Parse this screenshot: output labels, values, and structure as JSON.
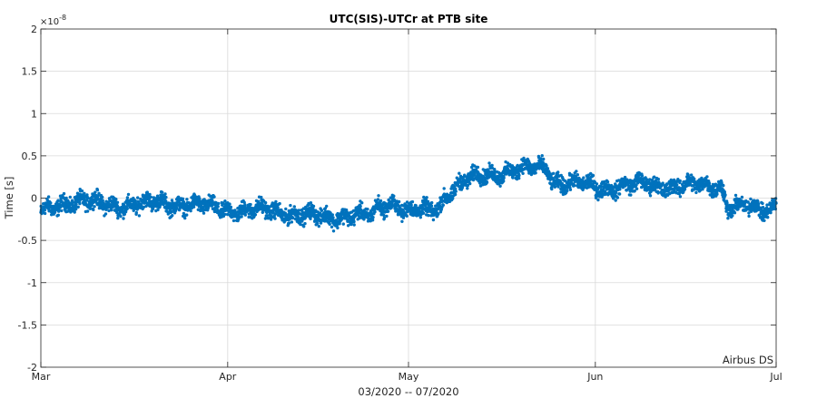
{
  "chart_data": {
    "type": "scatter",
    "title": "UTC(SIS)-UTCr at PTB site",
    "xlabel": "03/2020 -- 07/2020",
    "ylabel": "Time [s]",
    "y_exponent_label": "×10",
    "y_exponent_power": "-8",
    "annotation": "Airbus DS",
    "x_range": [
      "2020-03-01",
      "2020-07-01"
    ],
    "ylim": [
      -2,
      2
    ],
    "grid": true,
    "marker_color": "#0072BD",
    "x_ticks": [
      {
        "date": "2020-03-01",
        "label": "Mar"
      },
      {
        "date": "2020-04-01",
        "label": "Apr"
      },
      {
        "date": "2020-05-01",
        "label": "May"
      },
      {
        "date": "2020-06-01",
        "label": "Jun"
      },
      {
        "date": "2020-07-01",
        "label": "Jul"
      }
    ],
    "y_ticks": [
      {
        "value": 2,
        "label": "2"
      },
      {
        "value": 1.5,
        "label": "1.5"
      },
      {
        "value": 1,
        "label": "1"
      },
      {
        "value": 0.5,
        "label": "0.5"
      },
      {
        "value": 0,
        "label": "0"
      },
      {
        "value": -0.5,
        "label": "-0.5"
      },
      {
        "value": -1,
        "label": "-1"
      },
      {
        "value": -1.5,
        "label": "-1.5"
      },
      {
        "value": -2,
        "label": "-2"
      }
    ],
    "series": [
      {
        "values_unit": "1e-8 s",
        "noise_amplitude": 0.06,
        "trend": [
          {
            "date": "2020-03-01",
            "y": -0.18
          },
          {
            "date": "2020-03-05",
            "y": -0.05
          },
          {
            "date": "2020-03-08",
            "y": -0.03
          },
          {
            "date": "2020-03-12",
            "y": -0.09
          },
          {
            "date": "2020-03-17",
            "y": -0.07
          },
          {
            "date": "2020-03-21",
            "y": -0.06
          },
          {
            "date": "2020-03-26",
            "y": -0.08
          },
          {
            "date": "2020-03-30",
            "y": -0.12
          },
          {
            "date": "2020-04-04",
            "y": -0.15
          },
          {
            "date": "2020-04-08",
            "y": -0.14
          },
          {
            "date": "2020-04-13",
            "y": -0.2
          },
          {
            "date": "2020-04-17",
            "y": -0.23
          },
          {
            "date": "2020-04-21",
            "y": -0.2
          },
          {
            "date": "2020-04-25",
            "y": -0.22
          },
          {
            "date": "2020-04-26",
            "y": -0.1
          },
          {
            "date": "2020-04-29",
            "y": -0.05
          },
          {
            "date": "2020-04-30",
            "y": -0.14
          },
          {
            "date": "2020-05-04",
            "y": -0.16
          },
          {
            "date": "2020-05-06",
            "y": -0.12
          },
          {
            "date": "2020-05-07",
            "y": 0.02
          },
          {
            "date": "2020-05-10",
            "y": 0.2
          },
          {
            "date": "2020-05-14",
            "y": 0.27
          },
          {
            "date": "2020-05-19",
            "y": 0.34
          },
          {
            "date": "2020-05-24",
            "y": 0.36
          },
          {
            "date": "2020-05-25",
            "y": 0.2
          },
          {
            "date": "2020-05-29",
            "y": 0.17
          },
          {
            "date": "2020-06-02",
            "y": 0.12
          },
          {
            "date": "2020-06-06",
            "y": 0.15
          },
          {
            "date": "2020-06-10",
            "y": 0.16
          },
          {
            "date": "2020-06-15",
            "y": 0.13
          },
          {
            "date": "2020-06-19",
            "y": 0.16
          },
          {
            "date": "2020-06-22",
            "y": 0.14
          },
          {
            "date": "2020-06-23",
            "y": -0.12
          },
          {
            "date": "2020-06-26",
            "y": -0.11
          },
          {
            "date": "2020-06-30",
            "y": -0.14
          },
          {
            "date": "2020-07-01",
            "y": -0.02
          }
        ]
      }
    ]
  }
}
